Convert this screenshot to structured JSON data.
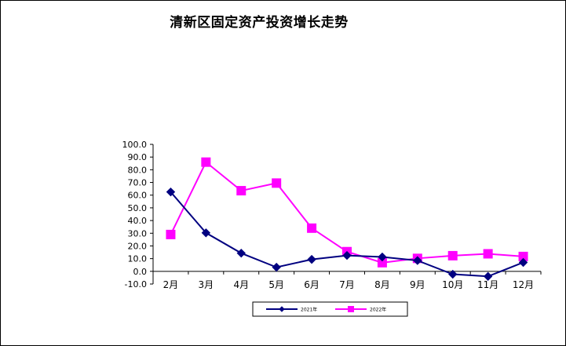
{
  "chart_data": {
    "type": "line",
    "title": "清新区固定资产投资增长走势",
    "categories": [
      "2月",
      "3月",
      "4月",
      "5月",
      "6月",
      "7月",
      "8月",
      "9月",
      "10月",
      "11月",
      "12月"
    ],
    "y_ticks": [
      "100.0",
      "90.0",
      "80.0",
      "70.0",
      "60.0",
      "50.0",
      "40.0",
      "30.0",
      "20.0",
      "10.0",
      "0.0",
      "-10.0"
    ],
    "ylim": [
      -10,
      100
    ],
    "grid": false,
    "legend_position": "bottom",
    "series": [
      {
        "name": "2021年",
        "color": "#000080",
        "marker": "diamond",
        "values": [
          62.5,
          30.3,
          14.3,
          3.2,
          9.4,
          12.5,
          11.3,
          8.5,
          -2.3,
          -4.0,
          7.0
        ]
      },
      {
        "name": "2022年",
        "color": "#FF00FF",
        "marker": "square",
        "values": [
          29.0,
          86.0,
          63.5,
          69.5,
          34.0,
          15.5,
          6.8,
          10.2,
          12.3,
          13.8,
          11.7
        ]
      }
    ]
  }
}
